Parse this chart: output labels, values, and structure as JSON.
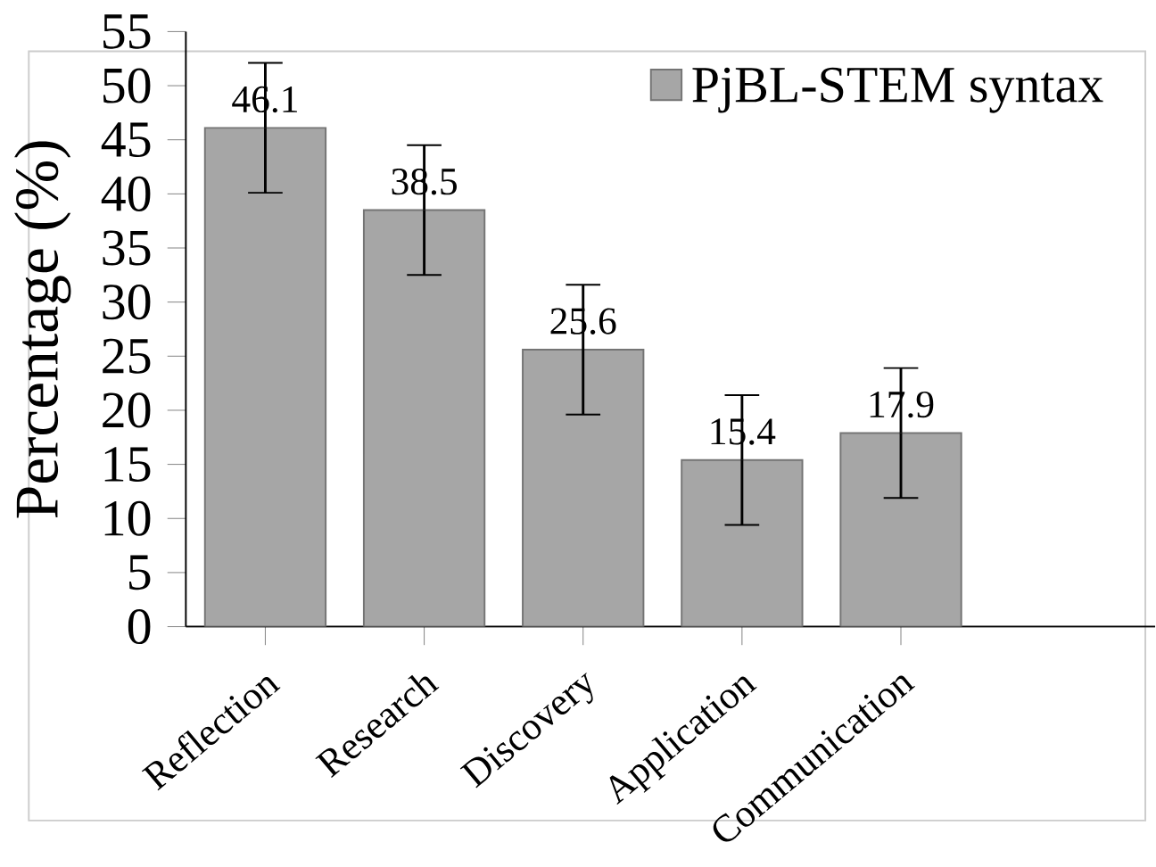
{
  "chart_data": {
    "type": "bar",
    "ylabel": "Percentage (%)",
    "categories": [
      "Reflection",
      "Research",
      "Discovery",
      "Application",
      "Communication"
    ],
    "series": [
      {
        "name": "PjBL-STEM syntax",
        "color": "#a6a6a6",
        "values": [
          46.1,
          38.5,
          25.6,
          15.4,
          17.9
        ],
        "errors": [
          6,
          6,
          6,
          6,
          6
        ]
      }
    ],
    "ylim": [
      0,
      55
    ],
    "yticks": [
      0,
      5,
      10,
      15,
      20,
      25,
      30,
      35,
      40,
      45,
      50,
      55
    ],
    "data_labels": true,
    "legend": "top right",
    "grid": false
  }
}
